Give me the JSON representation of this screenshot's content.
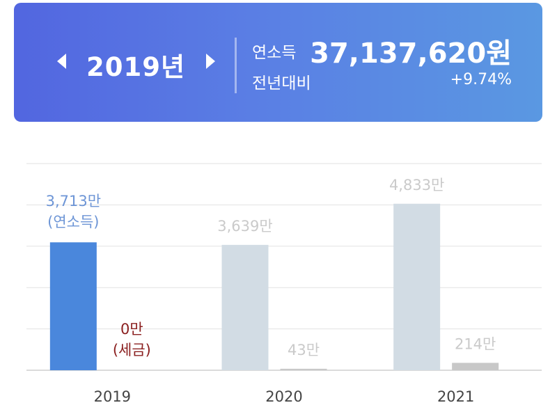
{
  "header": {
    "year": "2019년",
    "income_label": "연소득",
    "income_value": "37,137,620원",
    "yoy_label": "전년대비",
    "yoy_value": "+9.74%"
  },
  "colors": {
    "income_selected": "#4a87dc",
    "income_other": "#d2dce4",
    "tax_bar": "#c8c8c8",
    "income_label_selected": "#6d95d6",
    "tax_label_selected": "#8b2020",
    "label_other": "#cacaca",
    "grid": "#e2e2e2",
    "axis": "#cfcfcf",
    "xtick": "#444444"
  },
  "chart_data": {
    "type": "bar",
    "categories": [
      "2019",
      "2020",
      "2021"
    ],
    "selected_index": 0,
    "series": [
      {
        "values": [
          3713,
          3639,
          4833
        ],
        "labels": [
          "3,713만",
          "3,639만",
          "4,833만"
        ],
        "selected_suffix": "(연소득)"
      },
      {
        "values": [
          0,
          43,
          214
        ],
        "labels": [
          "0만",
          "43만",
          "214만"
        ],
        "selected_suffix": "(세금)"
      }
    ],
    "ylim": [
      0,
      6000
    ],
    "grid": true,
    "legend": "none"
  }
}
